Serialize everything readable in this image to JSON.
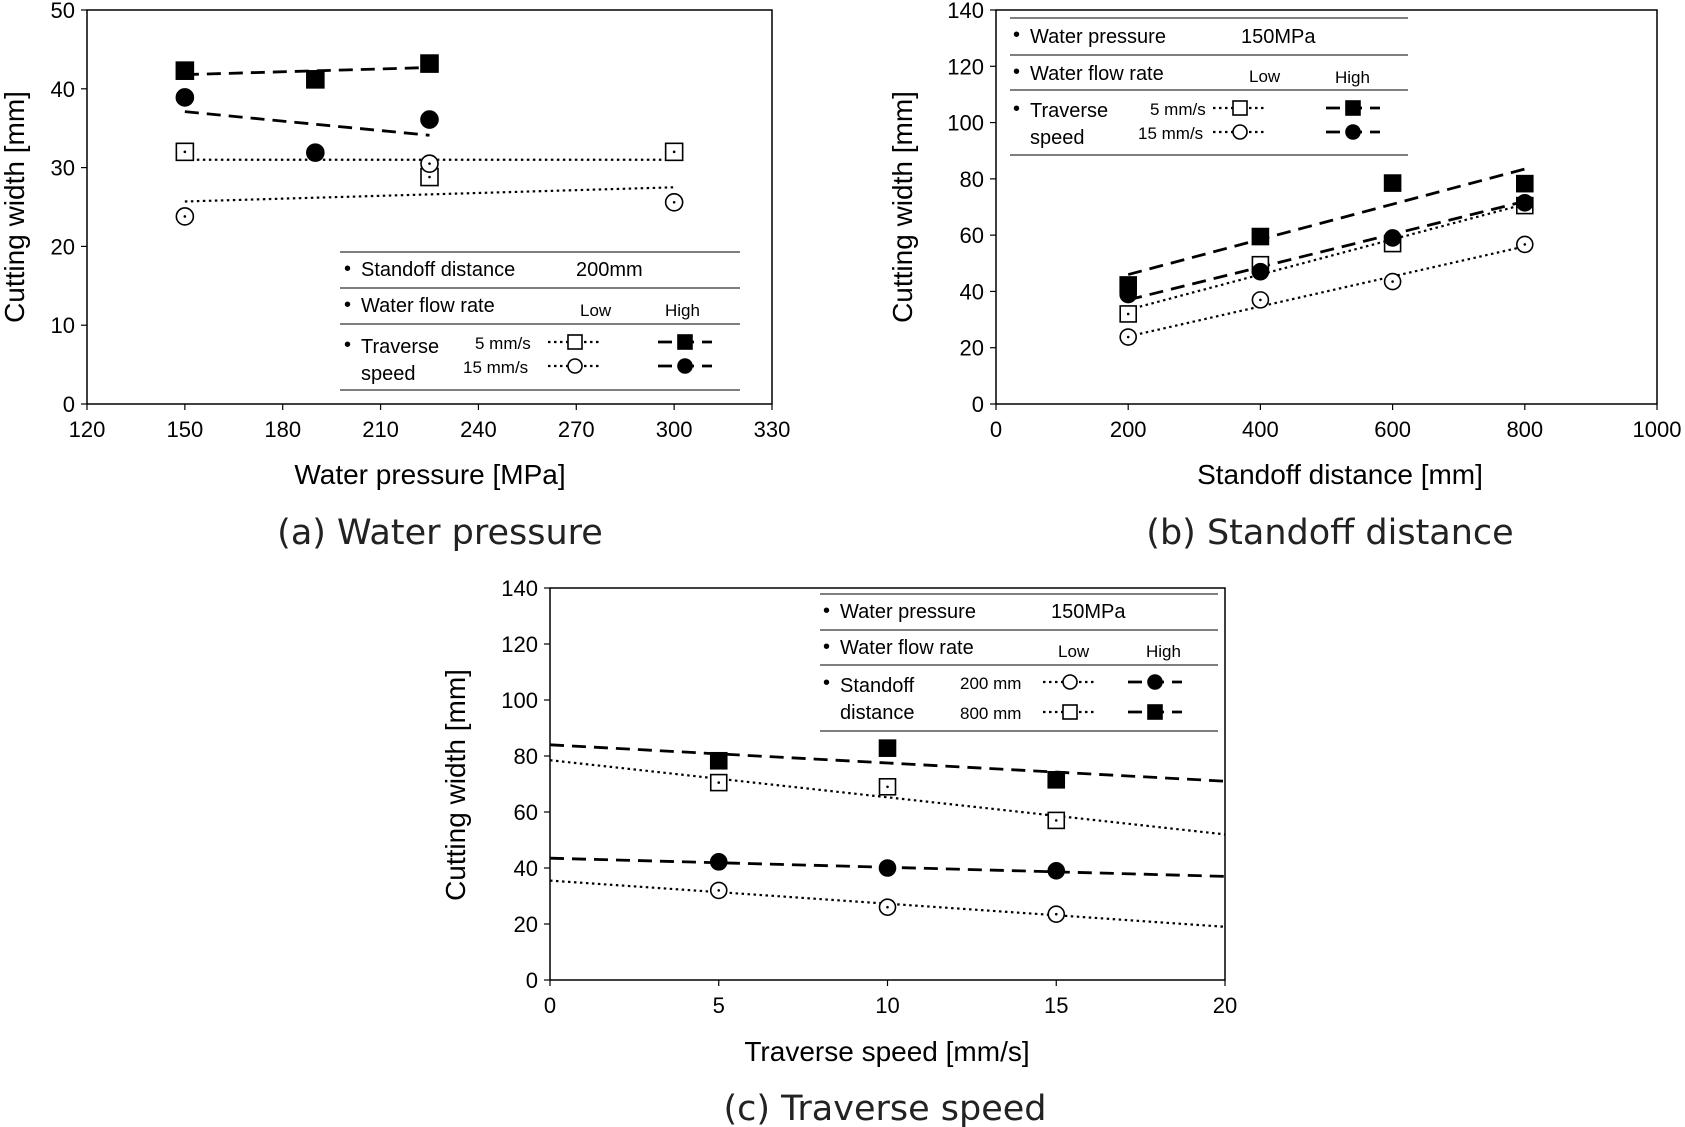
{
  "chart_data": [
    {
      "id": "a",
      "type": "scatter",
      "caption": "(a) Water pressure",
      "xlabel": "Water pressure [MPa]",
      "ylabel": "Cutting width [mm]",
      "xlim": [
        120,
        330
      ],
      "ylim": [
        0,
        50
      ],
      "xticks": [
        "120",
        "150",
        "180",
        "210",
        "240",
        "270",
        "300",
        "330"
      ],
      "yticks": [
        "0",
        "10",
        "20",
        "30",
        "40",
        "50"
      ],
      "legend": {
        "rows": [
          {
            "label": "Standoff distance",
            "value": "200mm"
          },
          {
            "label": "Water flow rate",
            "low": "Low",
            "high": "High"
          },
          {
            "label": "Traverse",
            "label2": "speed",
            "sub1": "5 mm/s",
            "sub2": "15 mm/s"
          }
        ]
      },
      "series": [
        {
          "name": "Low, 5 mm/s",
          "marker": "square",
          "filled": false,
          "line": "dotted",
          "x": [
            150,
            225,
            300
          ],
          "y": [
            32,
            28.8,
            32
          ],
          "fit": [
            [
              150,
              31
            ],
            [
              300,
              31
            ]
          ]
        },
        {
          "name": "Low, 15 mm/s",
          "marker": "circle",
          "filled": false,
          "line": "dotted",
          "x": [
            150,
            225,
            300
          ],
          "y": [
            23.8,
            30.5,
            25.6
          ],
          "fit": [
            [
              150,
              25.7
            ],
            [
              300,
              27.5
            ]
          ]
        },
        {
          "name": "High, 5 mm/s",
          "marker": "square",
          "filled": true,
          "line": "dashed",
          "x": [
            150,
            190,
            225
          ],
          "y": [
            42.3,
            41.2,
            43.2
          ],
          "fit": [
            [
              150,
              41.8
            ],
            [
              225,
              42.7
            ]
          ]
        },
        {
          "name": "High, 15 mm/s",
          "marker": "circle",
          "filled": true,
          "line": "dashed",
          "x": [
            150,
            190,
            225
          ],
          "y": [
            38.9,
            31.9,
            36.1
          ],
          "fit": [
            [
              150,
              37.1
            ],
            [
              225,
              34.1
            ]
          ]
        }
      ]
    },
    {
      "id": "b",
      "type": "scatter",
      "caption": "(b) Standoff distance",
      "xlabel": "Standoff distance [mm]",
      "ylabel": "Cutting width [mm]",
      "xlim": [
        0,
        1000
      ],
      "ylim": [
        0,
        140
      ],
      "xticks": [
        "0",
        "200",
        "400",
        "600",
        "800",
        "1000"
      ],
      "yticks": [
        "0",
        "20",
        "40",
        "60",
        "80",
        "100",
        "120",
        "140"
      ],
      "legend": {
        "rows": [
          {
            "label": "Water pressure",
            "value": "150MPa"
          },
          {
            "label": "Water flow rate",
            "low": "Low",
            "high": "High"
          },
          {
            "label": "Traverse",
            "label2": "speed",
            "sub1": "5 mm/s",
            "sub2": "15 mm/s"
          }
        ]
      },
      "series": [
        {
          "name": "Low, 5 mm/s",
          "marker": "square",
          "filled": false,
          "line": "dotted",
          "x": [
            200,
            400,
            600,
            800
          ],
          "y": [
            32,
            49.5,
            57,
            70.5
          ],
          "fit": [
            [
              200,
              33.5
            ],
            [
              800,
              71
            ]
          ]
        },
        {
          "name": "Low, 15 mm/s",
          "marker": "circle",
          "filled": false,
          "line": "dotted",
          "x": [
            200,
            400,
            600,
            800
          ],
          "y": [
            23.8,
            37,
            43.5,
            56.7
          ],
          "fit": [
            [
              200,
              24
            ],
            [
              800,
              56
            ]
          ]
        },
        {
          "name": "High, 5 mm/s",
          "marker": "square",
          "filled": true,
          "line": "dashed",
          "x": [
            200,
            400,
            600,
            800
          ],
          "y": [
            42.3,
            59.5,
            78.5,
            78.3
          ],
          "fit": [
            [
              200,
              46
            ],
            [
              800,
              83.5
            ]
          ]
        },
        {
          "name": "High, 15 mm/s",
          "marker": "circle",
          "filled": true,
          "line": "dashed",
          "x": [
            200,
            400,
            600,
            800
          ],
          "y": [
            38.9,
            47,
            59,
            71.5
          ],
          "fit": [
            [
              200,
              37
            ],
            [
              800,
              72
            ]
          ]
        }
      ]
    },
    {
      "id": "c",
      "type": "scatter",
      "caption": "(c) Traverse speed",
      "xlabel": "Traverse speed [mm/s]",
      "ylabel": "Cutting width [mm]",
      "xlim": [
        0,
        20
      ],
      "ylim": [
        0,
        140
      ],
      "xticks": [
        "0",
        "5",
        "10",
        "15",
        "20"
      ],
      "yticks": [
        "0",
        "20",
        "40",
        "60",
        "80",
        "100",
        "120",
        "140"
      ],
      "legend": {
        "rows": [
          {
            "label": "Water pressure",
            "value": "150MPa"
          },
          {
            "label": "Water flow rate",
            "low": "Low",
            "high": "High"
          },
          {
            "label": "Standoff",
            "label2": "distance",
            "sub1": "200 mm",
            "sub2": "800 mm"
          }
        ]
      },
      "series": [
        {
          "name": "Low, 200 mm",
          "marker": "circle",
          "filled": false,
          "line": "dotted",
          "x": [
            5,
            10,
            15
          ],
          "y": [
            32,
            26,
            23.5
          ],
          "fit": [
            [
              0,
              35.5
            ],
            [
              20,
              19
            ]
          ]
        },
        {
          "name": "Low, 800 mm",
          "marker": "square",
          "filled": false,
          "line": "dotted",
          "x": [
            5,
            10,
            15
          ],
          "y": [
            70.5,
            69,
            57
          ],
          "fit": [
            [
              0,
              78.5
            ],
            [
              20,
              52
            ]
          ]
        },
        {
          "name": "High, 200 mm",
          "marker": "circle",
          "filled": true,
          "line": "dashed",
          "x": [
            5,
            10,
            15
          ],
          "y": [
            42.2,
            40,
            39
          ],
          "fit": [
            [
              0,
              43.5
            ],
            [
              20,
              37
            ]
          ]
        },
        {
          "name": "High, 800 mm",
          "marker": "square",
          "filled": true,
          "line": "dashed",
          "x": [
            5,
            10,
            15
          ],
          "y": [
            78.3,
            82.8,
            71.5
          ],
          "fit": [
            [
              0,
              84
            ],
            [
              20,
              71
            ]
          ]
        }
      ]
    }
  ]
}
